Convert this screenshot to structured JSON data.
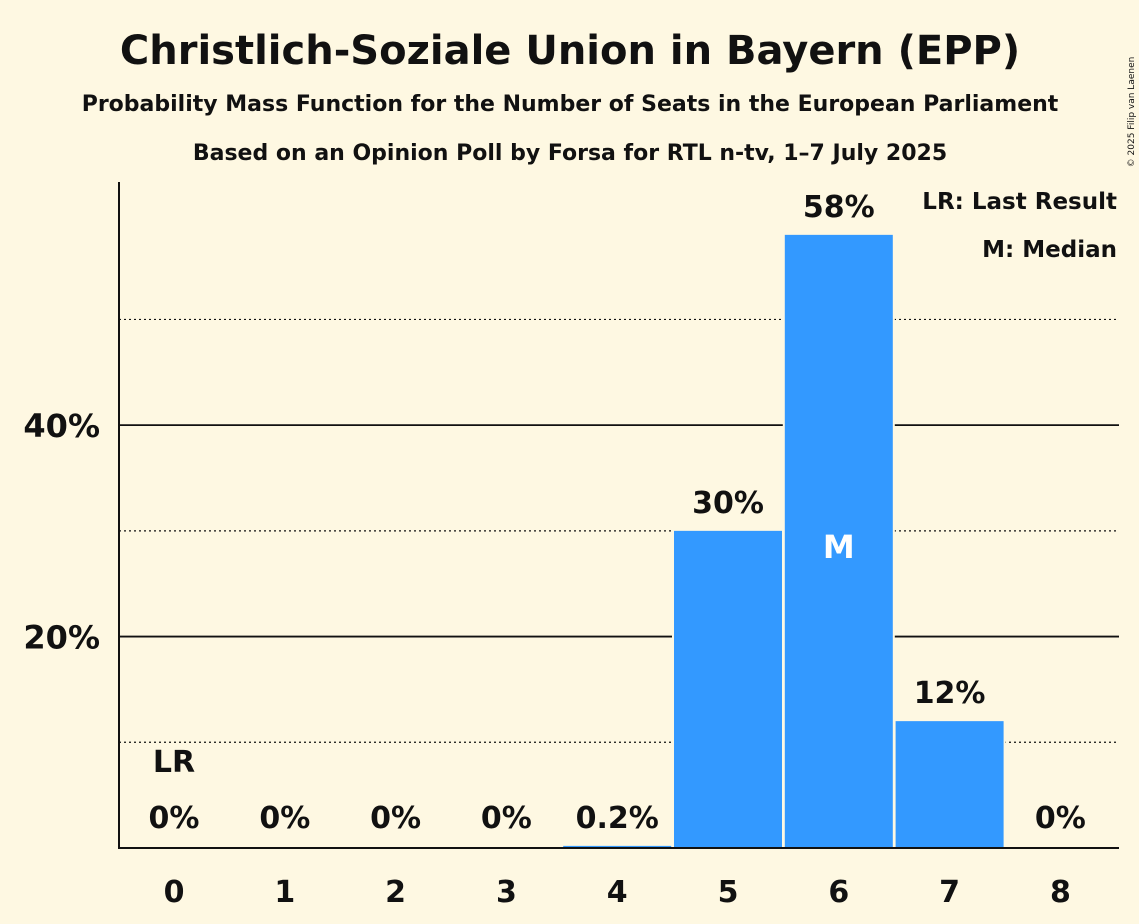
{
  "chart_data": {
    "type": "bar",
    "title": "Christlich-Soziale Union in Bayern (EPP)",
    "subtitle": "Probability Mass Function for the Number of Seats in the European Parliament",
    "subtitle2": "Based on an Opinion Poll by Forsa for RTL n-tv, 1–7 July 2025",
    "copyright": "© 2025 Filip van Laenen",
    "categories": [
      "0",
      "1",
      "2",
      "3",
      "4",
      "5",
      "6",
      "7",
      "8"
    ],
    "values": [
      0,
      0,
      0,
      0,
      0.2,
      30,
      58,
      12,
      0
    ],
    "value_labels": [
      "0%",
      "0%",
      "0%",
      "0%",
      "0.2%",
      "30%",
      "58%",
      "12%",
      "0%"
    ],
    "ylim": [
      0,
      63
    ],
    "y_major_ticks": [
      {
        "value": 20,
        "label": "20%"
      },
      {
        "value": 40,
        "label": "40%"
      }
    ],
    "y_minor_gridlines": [
      10,
      30,
      50
    ],
    "bar_color": "#3399FF",
    "background_color": "#FEF8E2",
    "last_result_index": 0,
    "last_result_marker": "LR",
    "median_index": 6,
    "median_marker": "M",
    "legend": [
      "LR: Last Result",
      "M: Median"
    ],
    "xlabel": "",
    "ylabel": ""
  }
}
